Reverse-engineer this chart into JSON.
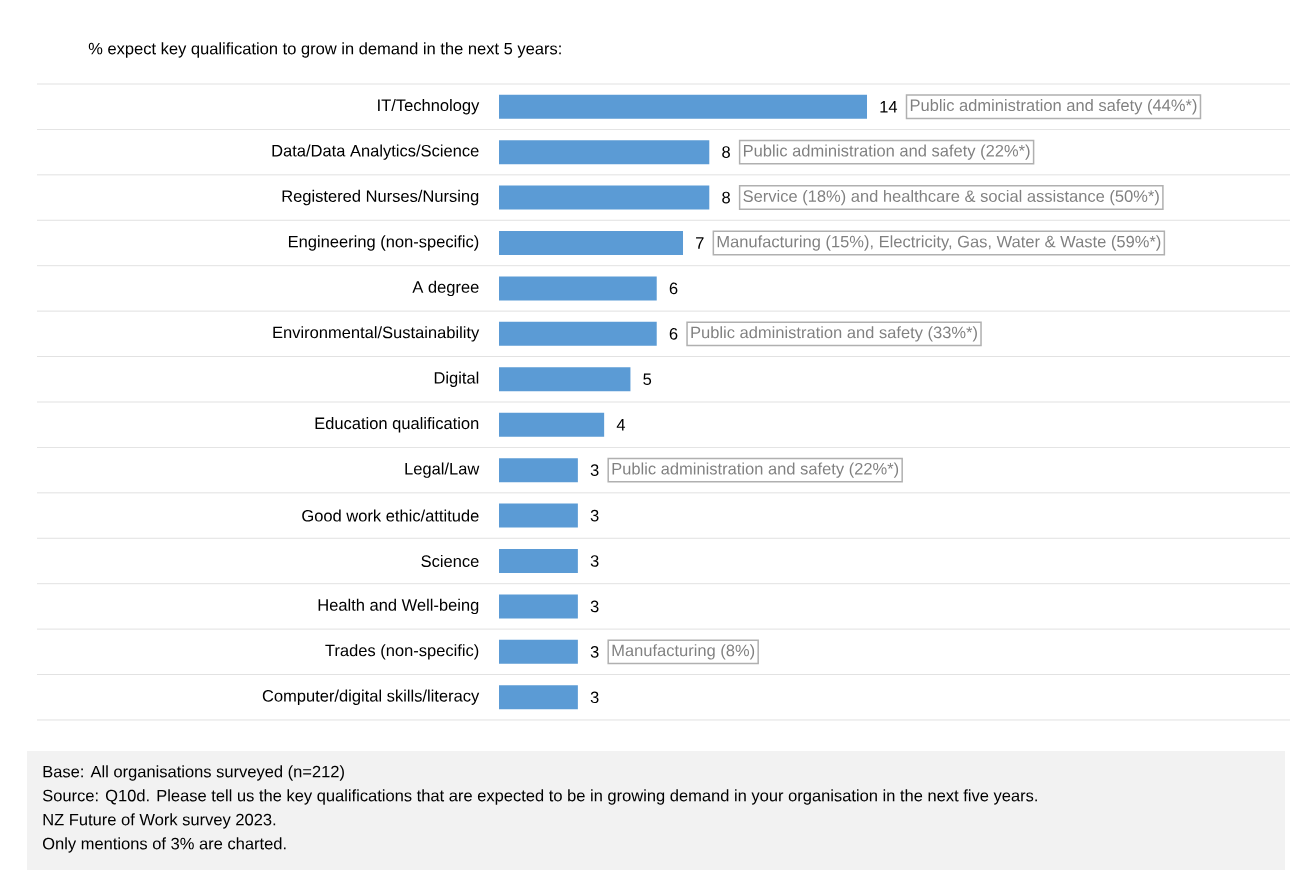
{
  "chart_data": {
    "type": "bar",
    "orientation": "horizontal",
    "title": "% expect key qualification to grow in demand in the next 5 years:",
    "categories": [
      "IT/Technology",
      "Data/Data Analytics/Science",
      "Registered Nurses/Nursing",
      "Engineering (non-specific)",
      "A degree",
      "Environmental/Sustainability",
      "Digital",
      "Education qualification",
      "Legal/Law",
      "Good work ethic/attitude",
      "Science",
      "Health and Well-being",
      "Trades (non-specific)",
      "Computer/digital skills/literacy"
    ],
    "values": [
      14,
      8,
      8,
      7,
      6,
      6,
      5,
      4,
      3,
      3,
      3,
      3,
      3,
      3
    ],
    "color": "#5b9bd5",
    "data_labels": true,
    "annotations": [
      {
        "text": "Public administration and safety (44%*)",
        "x": 14,
        "y": "IT/Technology"
      },
      {
        "text": "Public administration and safety (22%*)",
        "x": 8,
        "y": "Data/Data Analytics/Science"
      },
      {
        "text": "Service (18%) and healthcare & social assistance (50%*)",
        "x": 8,
        "y": "Registered Nurses/Nursing"
      },
      {
        "text": "Manufacturing (15%), Electricity, Gas, Water & Waste (59%*)",
        "x": 7,
        "y": "Engineering (non-specific)"
      },
      {
        "text": "Public administration and safety (33%*)",
        "x": 6,
        "y": "Environmental/Sustainability"
      },
      {
        "text": "Public administration and safety (22%*)",
        "x": 3,
        "y": "Legal/Law"
      },
      {
        "text": "Manufacturing (8%)",
        "x": 3,
        "y": "Trades (non-specific)"
      },
      "Base: All organisations surveyed (n=212)",
      "Source: Q10d. Please tell us the key qualifications that are expected to be in growing demand in your organisation in the next five years.",
      "NZ Future of Work survey 2023.",
      "Only mentions of 3% are charted."
    ]
  }
}
